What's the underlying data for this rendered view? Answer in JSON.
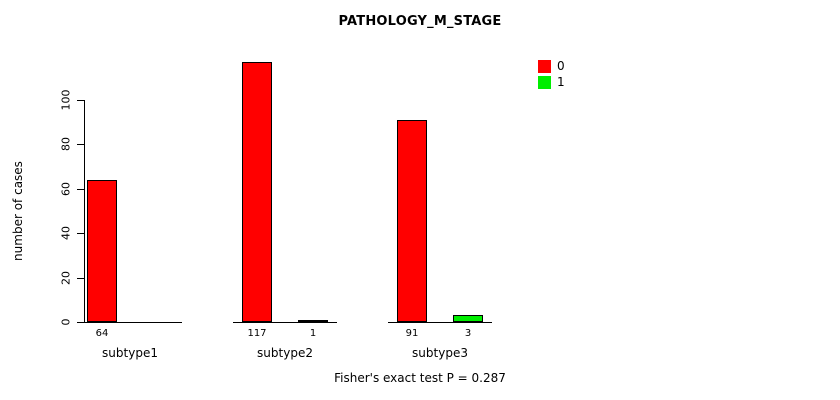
{
  "chart_data": {
    "type": "bar",
    "title": "PATHOLOGY_M_STAGE",
    "ylabel": "number of cases",
    "xlabel": "",
    "categories": [
      "subtype1",
      "subtype2",
      "subtype3"
    ],
    "series": [
      {
        "name": "0",
        "color": "#ff0000",
        "values": [
          64,
          117,
          91
        ],
        "labels": [
          "64",
          "117",
          "91"
        ]
      },
      {
        "name": "1",
        "color": "#00ee00",
        "values": [
          0,
          1,
          3
        ],
        "labels": [
          "",
          "1",
          "3"
        ]
      }
    ],
    "yticks": [
      0,
      20,
      40,
      60,
      80,
      100
    ],
    "ylim": [
      0,
      120
    ],
    "grid": false,
    "legend_position": "top-right",
    "annotation": "Fisher's exact test P = 0.287"
  }
}
